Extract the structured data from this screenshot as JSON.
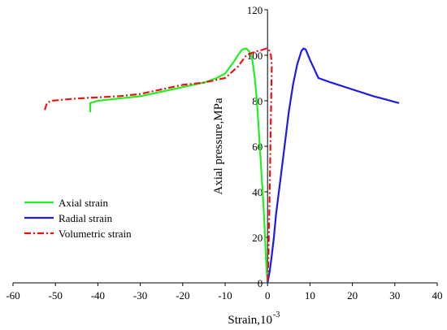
{
  "chart_data": {
    "type": "line",
    "title": "",
    "xlabel": "Strain,10",
    "xlabel_exponent": "-3",
    "ylabel": "Axial pressure,MPa",
    "xlim": [
      -60,
      40
    ],
    "ylim": [
      0,
      120
    ],
    "x_ticks": [
      -60,
      -50,
      -40,
      -30,
      -20,
      -10,
      0,
      10,
      20,
      30,
      40
    ],
    "y_ticks": [
      0,
      20,
      40,
      60,
      80,
      100,
      120
    ],
    "grid": false,
    "legend_position": "bottom-left",
    "series": [
      {
        "name": "Axial strain",
        "color": "#22ee22",
        "style": "solid",
        "x": [
          -41.8,
          -41.8,
          -40,
          -35,
          -30,
          -25,
          -20,
          -15,
          -12,
          -10,
          -8,
          -7,
          -6,
          -5,
          -4,
          -3.5,
          -3,
          -2.5,
          -2,
          -1.5,
          -1,
          -0.7,
          -0.4,
          -0.2,
          0
        ],
        "y": [
          75,
          79,
          80,
          81,
          82,
          84,
          86,
          88,
          90,
          92,
          97,
          100,
          102.5,
          103,
          101,
          97,
          90,
          80,
          65,
          50,
          35,
          25,
          12,
          5,
          0
        ]
      },
      {
        "name": "Radial strain",
        "color": "#1a1aee",
        "style": "solid",
        "x": [
          0,
          0.5,
          1,
          1.5,
          2,
          3,
          4,
          5,
          6,
          7,
          8,
          8.5,
          9,
          10,
          11,
          12,
          15,
          20,
          25,
          28,
          30,
          31
        ],
        "y": [
          0,
          5,
          12,
          20,
          30,
          45,
          60,
          75,
          87,
          96,
          102,
          103,
          102.5,
          98,
          94,
          90,
          88,
          85,
          82,
          80.5,
          79.5,
          79
        ]
      },
      {
        "name": "Volumetric strain",
        "color": "#ee1111",
        "style": "dashdot",
        "x": [
          -52.5,
          -52,
          -51,
          -48,
          -45,
          -40,
          -35,
          -30,
          -25,
          -20,
          -15,
          -10,
          -7,
          -5,
          -3,
          -2,
          -1,
          -0.3,
          0.3,
          0.8,
          1,
          0.8,
          0.6,
          0.4,
          0.2,
          0
        ],
        "y": [
          76,
          79,
          80,
          80.5,
          81,
          81.5,
          82,
          83,
          85,
          87,
          88,
          90,
          95,
          100,
          101.5,
          102,
          102.5,
          103,
          102.5,
          100,
          95,
          75,
          50,
          30,
          10,
          0
        ]
      }
    ]
  }
}
